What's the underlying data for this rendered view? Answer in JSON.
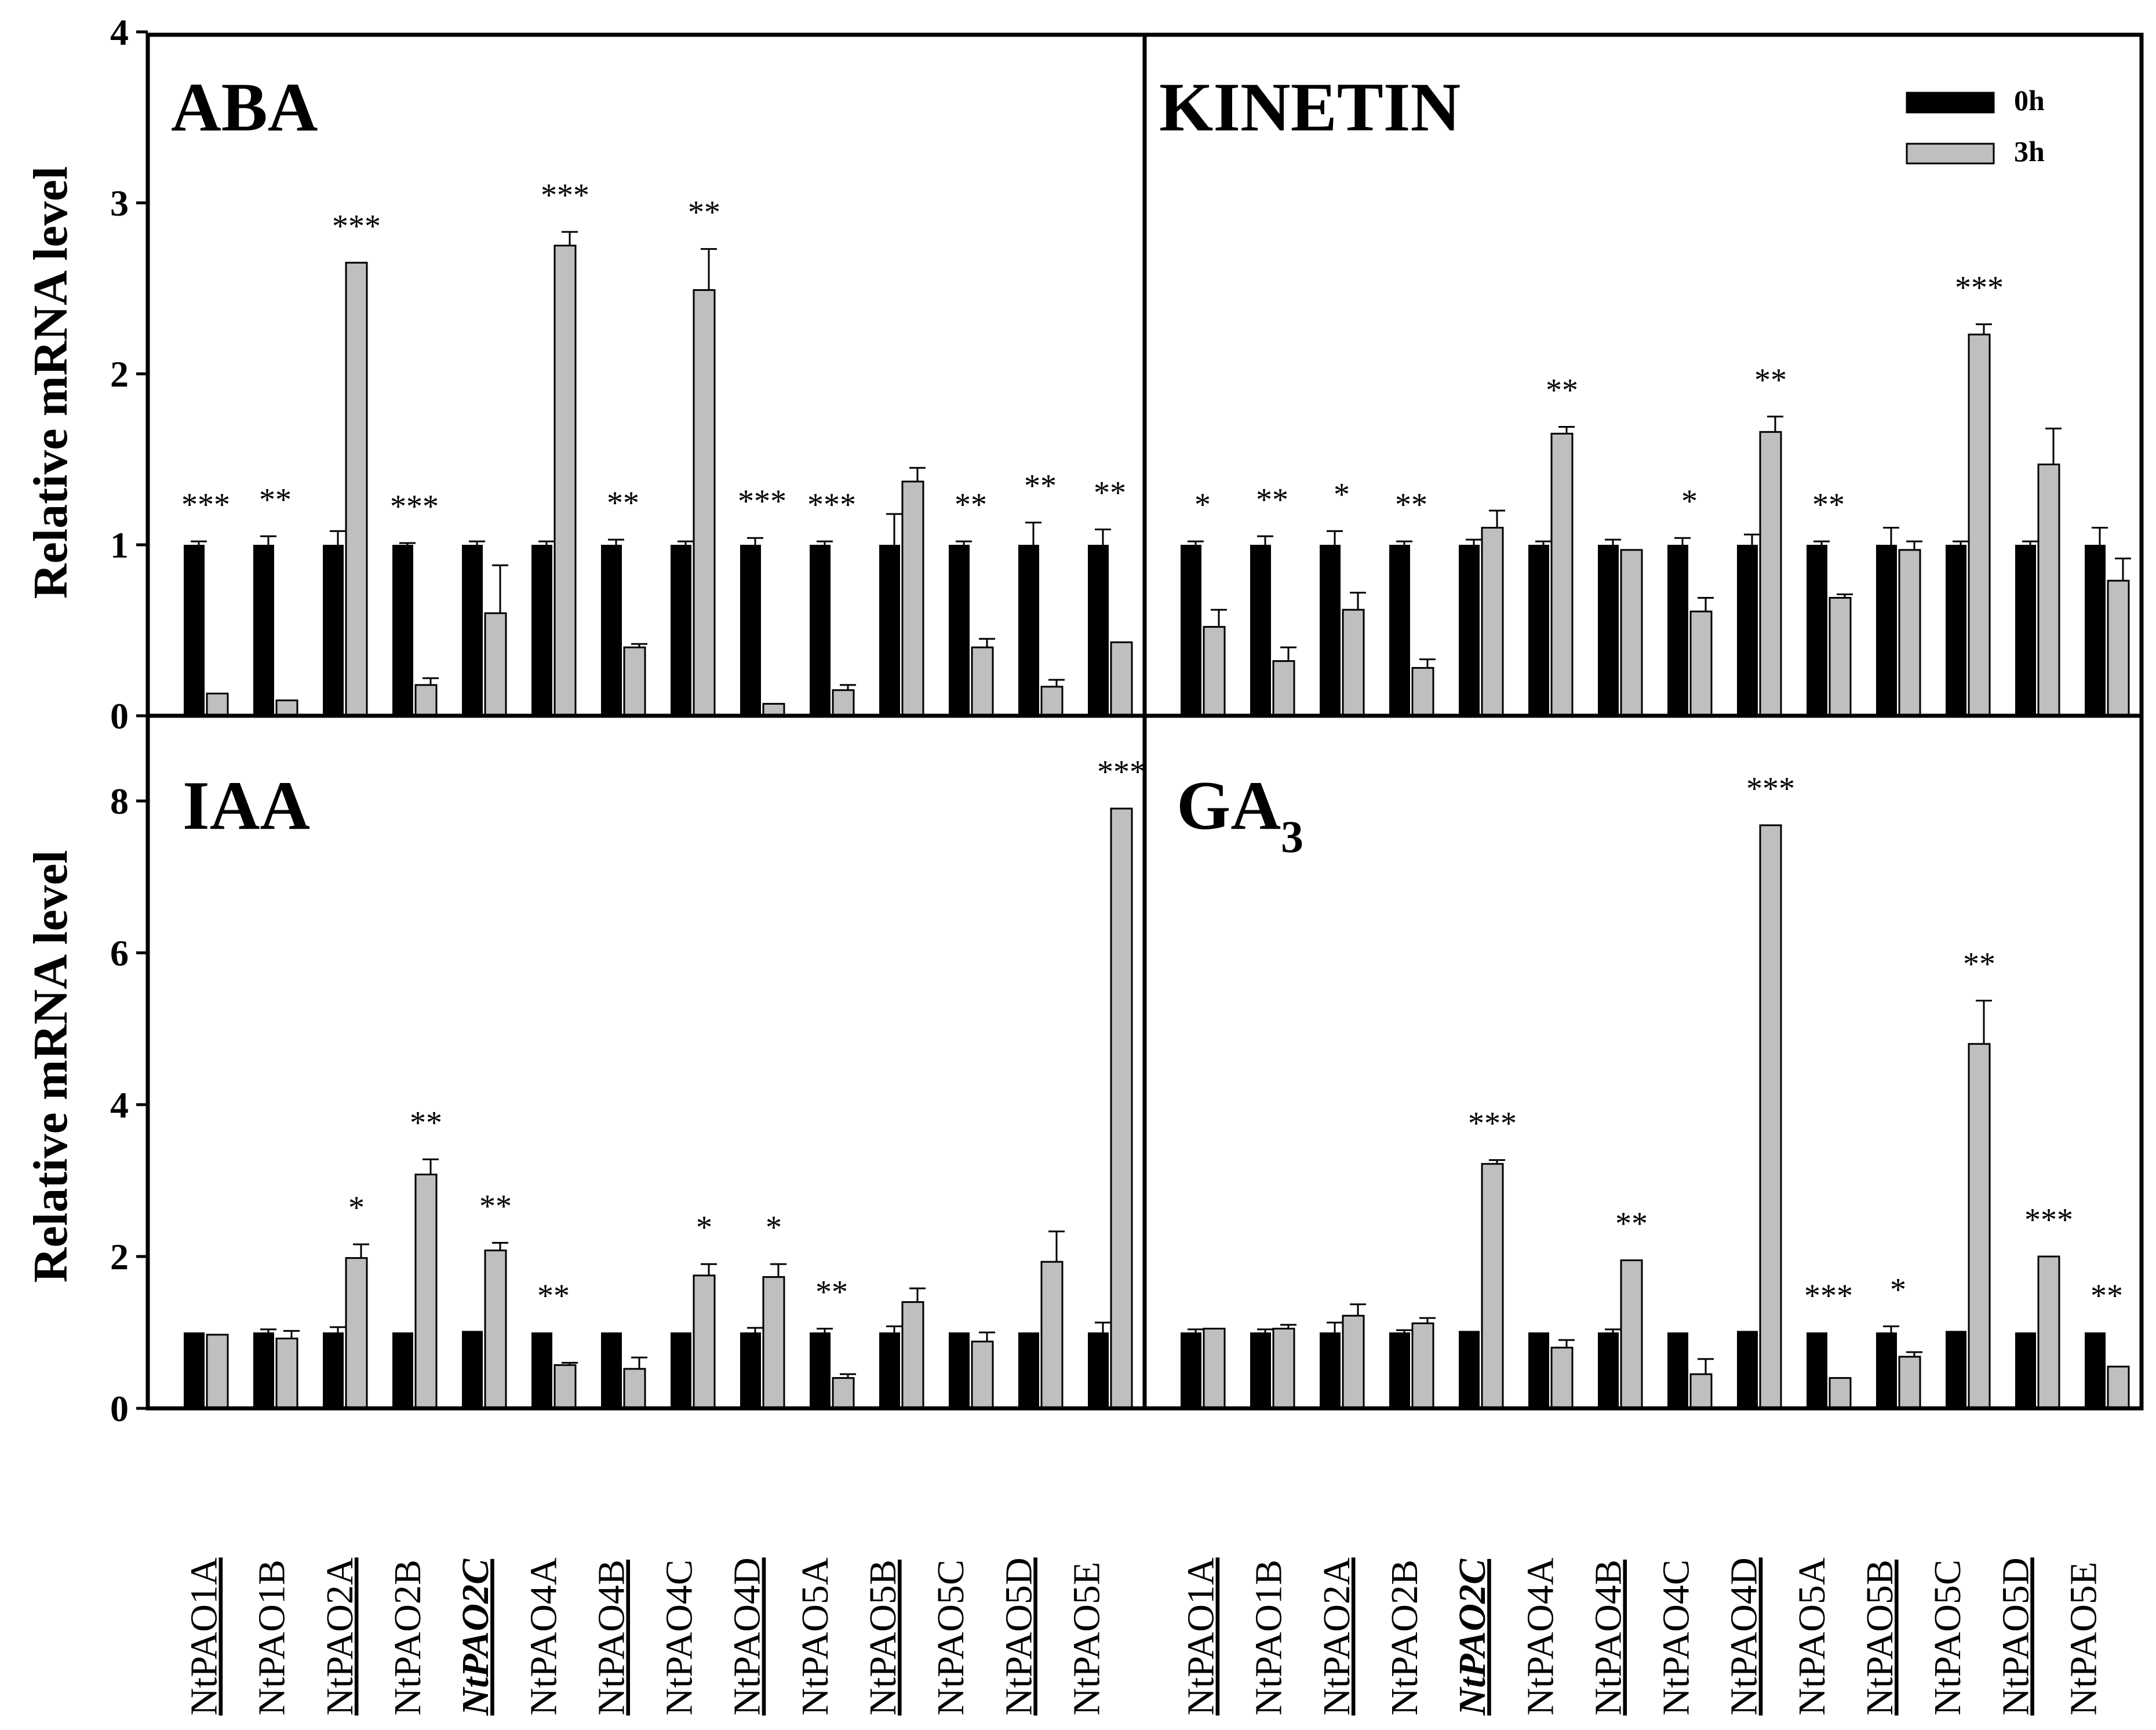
{
  "chart_data": {
    "type": "bar",
    "ylabel": "Relative mRNA level",
    "legend": {
      "position": "top-right",
      "series": [
        "0h",
        "3h"
      ],
      "colors": [
        "#000000",
        "#bfbfbf"
      ]
    },
    "categories": [
      "NtPAO1A",
      "NtPAO1B",
      "NtPAO2A",
      "NtPAO2B",
      "NtPAO2C",
      "NtPAO4A",
      "NtPAO4B",
      "NtPAO4C",
      "NtPAO4D",
      "NtPAO5A",
      "NtPAO5B",
      "NtPAO5C",
      "NtPAO5D",
      "NtPAO5E"
    ],
    "italic_category": "NtPAO2C",
    "panels": [
      {
        "id": "aba",
        "title": "ABA",
        "ylim": [
          0,
          4
        ],
        "yticks": [
          0,
          1,
          2,
          3,
          4
        ],
        "series": [
          {
            "name": "0h",
            "values": [
              1,
              1,
              1,
              1,
              1,
              1,
              1,
              1,
              1,
              1,
              1,
              1,
              1,
              1
            ],
            "err": [
              0.02,
              0.05,
              0.08,
              0.01,
              0.02,
              0.02,
              0.03,
              0.02,
              0.04,
              0.02,
              0.18,
              0.02,
              0.13,
              0.09
            ]
          },
          {
            "name": "3h",
            "values": [
              0.13,
              0.09,
              2.65,
              0.18,
              0.6,
              2.75,
              0.4,
              2.49,
              0.07,
              0.15,
              1.37,
              0.4,
              0.17,
              0.43
            ],
            "err": [
              0,
              0,
              0,
              0.04,
              0.28,
              0.08,
              0.02,
              0.24,
              0,
              0.03,
              0.08,
              0.05,
              0.04,
              0
            ]
          }
        ],
        "significance": [
          "***",
          "**",
          "***",
          "***",
          "",
          "***",
          "**",
          "**",
          "***",
          "***",
          "",
          "**",
          "**",
          "**"
        ],
        "sig_series": [
          0,
          0,
          1,
          0,
          0,
          1,
          0,
          1,
          0,
          0,
          0,
          0,
          0,
          0
        ]
      },
      {
        "id": "kinetin",
        "title": "KINETIN",
        "ylim": [
          0,
          4
        ],
        "series": [
          {
            "name": "0h",
            "values": [
              1,
              1,
              1,
              1,
              1,
              1,
              1,
              1,
              1,
              1,
              1,
              1,
              1,
              1
            ],
            "err": [
              0.02,
              0.05,
              0.08,
              0.02,
              0.03,
              0.02,
              0.03,
              0.04,
              0.06,
              0.02,
              0.1,
              0.02,
              0.02,
              0.1
            ]
          },
          {
            "name": "3h",
            "values": [
              0.52,
              0.32,
              0.62,
              0.28,
              1.1,
              1.65,
              0.97,
              0.61,
              1.66,
              0.69,
              0.97,
              2.23,
              1.47,
              0.79
            ]
          },
          {
            "name": "3h_err",
            "values": [
              0.1,
              0.08,
              0.1,
              0.05,
              0.1,
              0.04,
              0,
              0.08,
              0.09,
              0.02,
              0.05,
              0.06,
              0.21,
              0.13
            ]
          }
        ],
        "significance": [
          "*",
          "**",
          "*",
          "**",
          "",
          "**",
          "",
          "*",
          "**",
          "**",
          "",
          "***",
          "",
          ""
        ],
        "sig_series": [
          0,
          0,
          0,
          0,
          0,
          1,
          0,
          0,
          1,
          0,
          0,
          1,
          0,
          0
        ]
      },
      {
        "id": "iaa",
        "title": "IAA",
        "ylim": [
          0,
          9
        ],
        "yticks": [
          0,
          2,
          4,
          6,
          8
        ],
        "series": [
          {
            "name": "0h",
            "values": [
              1,
              1,
              1,
              1,
              1.02,
              1,
              1,
              1,
              1,
              1,
              1,
              1,
              1,
              1
            ],
            "err": [
              0,
              0.04,
              0.07,
              0,
              0,
              0,
              0,
              0,
              0.06,
              0.05,
              0.08,
              0,
              0,
              0.13
            ]
          },
          {
            "name": "3h",
            "values": [
              0.97,
              0.92,
              1.98,
              3.08,
              2.08,
              0.57,
              0.52,
              1.75,
              1.73,
              0.4,
              1.4,
              0.88,
              1.93,
              7.9
            ]
          },
          {
            "name": "3h_err",
            "values": [
              0,
              0.1,
              0.18,
              0.2,
              0.1,
              0.03,
              0.15,
              0.15,
              0.17,
              0.05,
              0.18,
              0.12,
              0.4,
              0
            ]
          }
        ],
        "significance": [
          "",
          "",
          "*",
          "**",
          "**",
          "**",
          "",
          "*",
          "*",
          "**",
          "",
          "",
          "",
          "***"
        ],
        "sig_series": [
          0,
          0,
          1,
          1,
          1,
          0,
          0,
          1,
          1,
          0,
          0,
          0,
          0,
          1
        ]
      },
      {
        "id": "ga3",
        "title": "GA",
        "title_sub": "3",
        "ylim": [
          0,
          9
        ],
        "series": [
          {
            "name": "0h",
            "values": [
              1,
              1,
              1,
              1,
              1.02,
              1,
              1,
              1,
              1.02,
              1,
              1,
              1.02,
              1,
              1
            ],
            "err": [
              0.04,
              0.04,
              0.13,
              0.03,
              0,
              0,
              0.04,
              0,
              0,
              0,
              0.08,
              0,
              0,
              0
            ]
          },
          {
            "name": "3h",
            "values": [
              1.05,
              1.05,
              1.22,
              1.12,
              3.22,
              0.8,
              1.95,
              0.45,
              7.68,
              0.4,
              0.68,
              4.8,
              2.0,
              0.55
            ]
          },
          {
            "name": "3h_err",
            "values": [
              0,
              0.05,
              0.15,
              0.07,
              0.05,
              0.1,
              0,
              0.2,
              0,
              0,
              0.06,
              0.57,
              0,
              0
            ]
          }
        ],
        "significance": [
          "",
          "",
          "",
          "",
          "***",
          "",
          "**",
          "",
          "***",
          "***",
          "*",
          "**",
          "***",
          "**"
        ],
        "sig_series": [
          0,
          0,
          0,
          0,
          1,
          0,
          1,
          0,
          1,
          0,
          0,
          1,
          1,
          0
        ]
      }
    ]
  }
}
